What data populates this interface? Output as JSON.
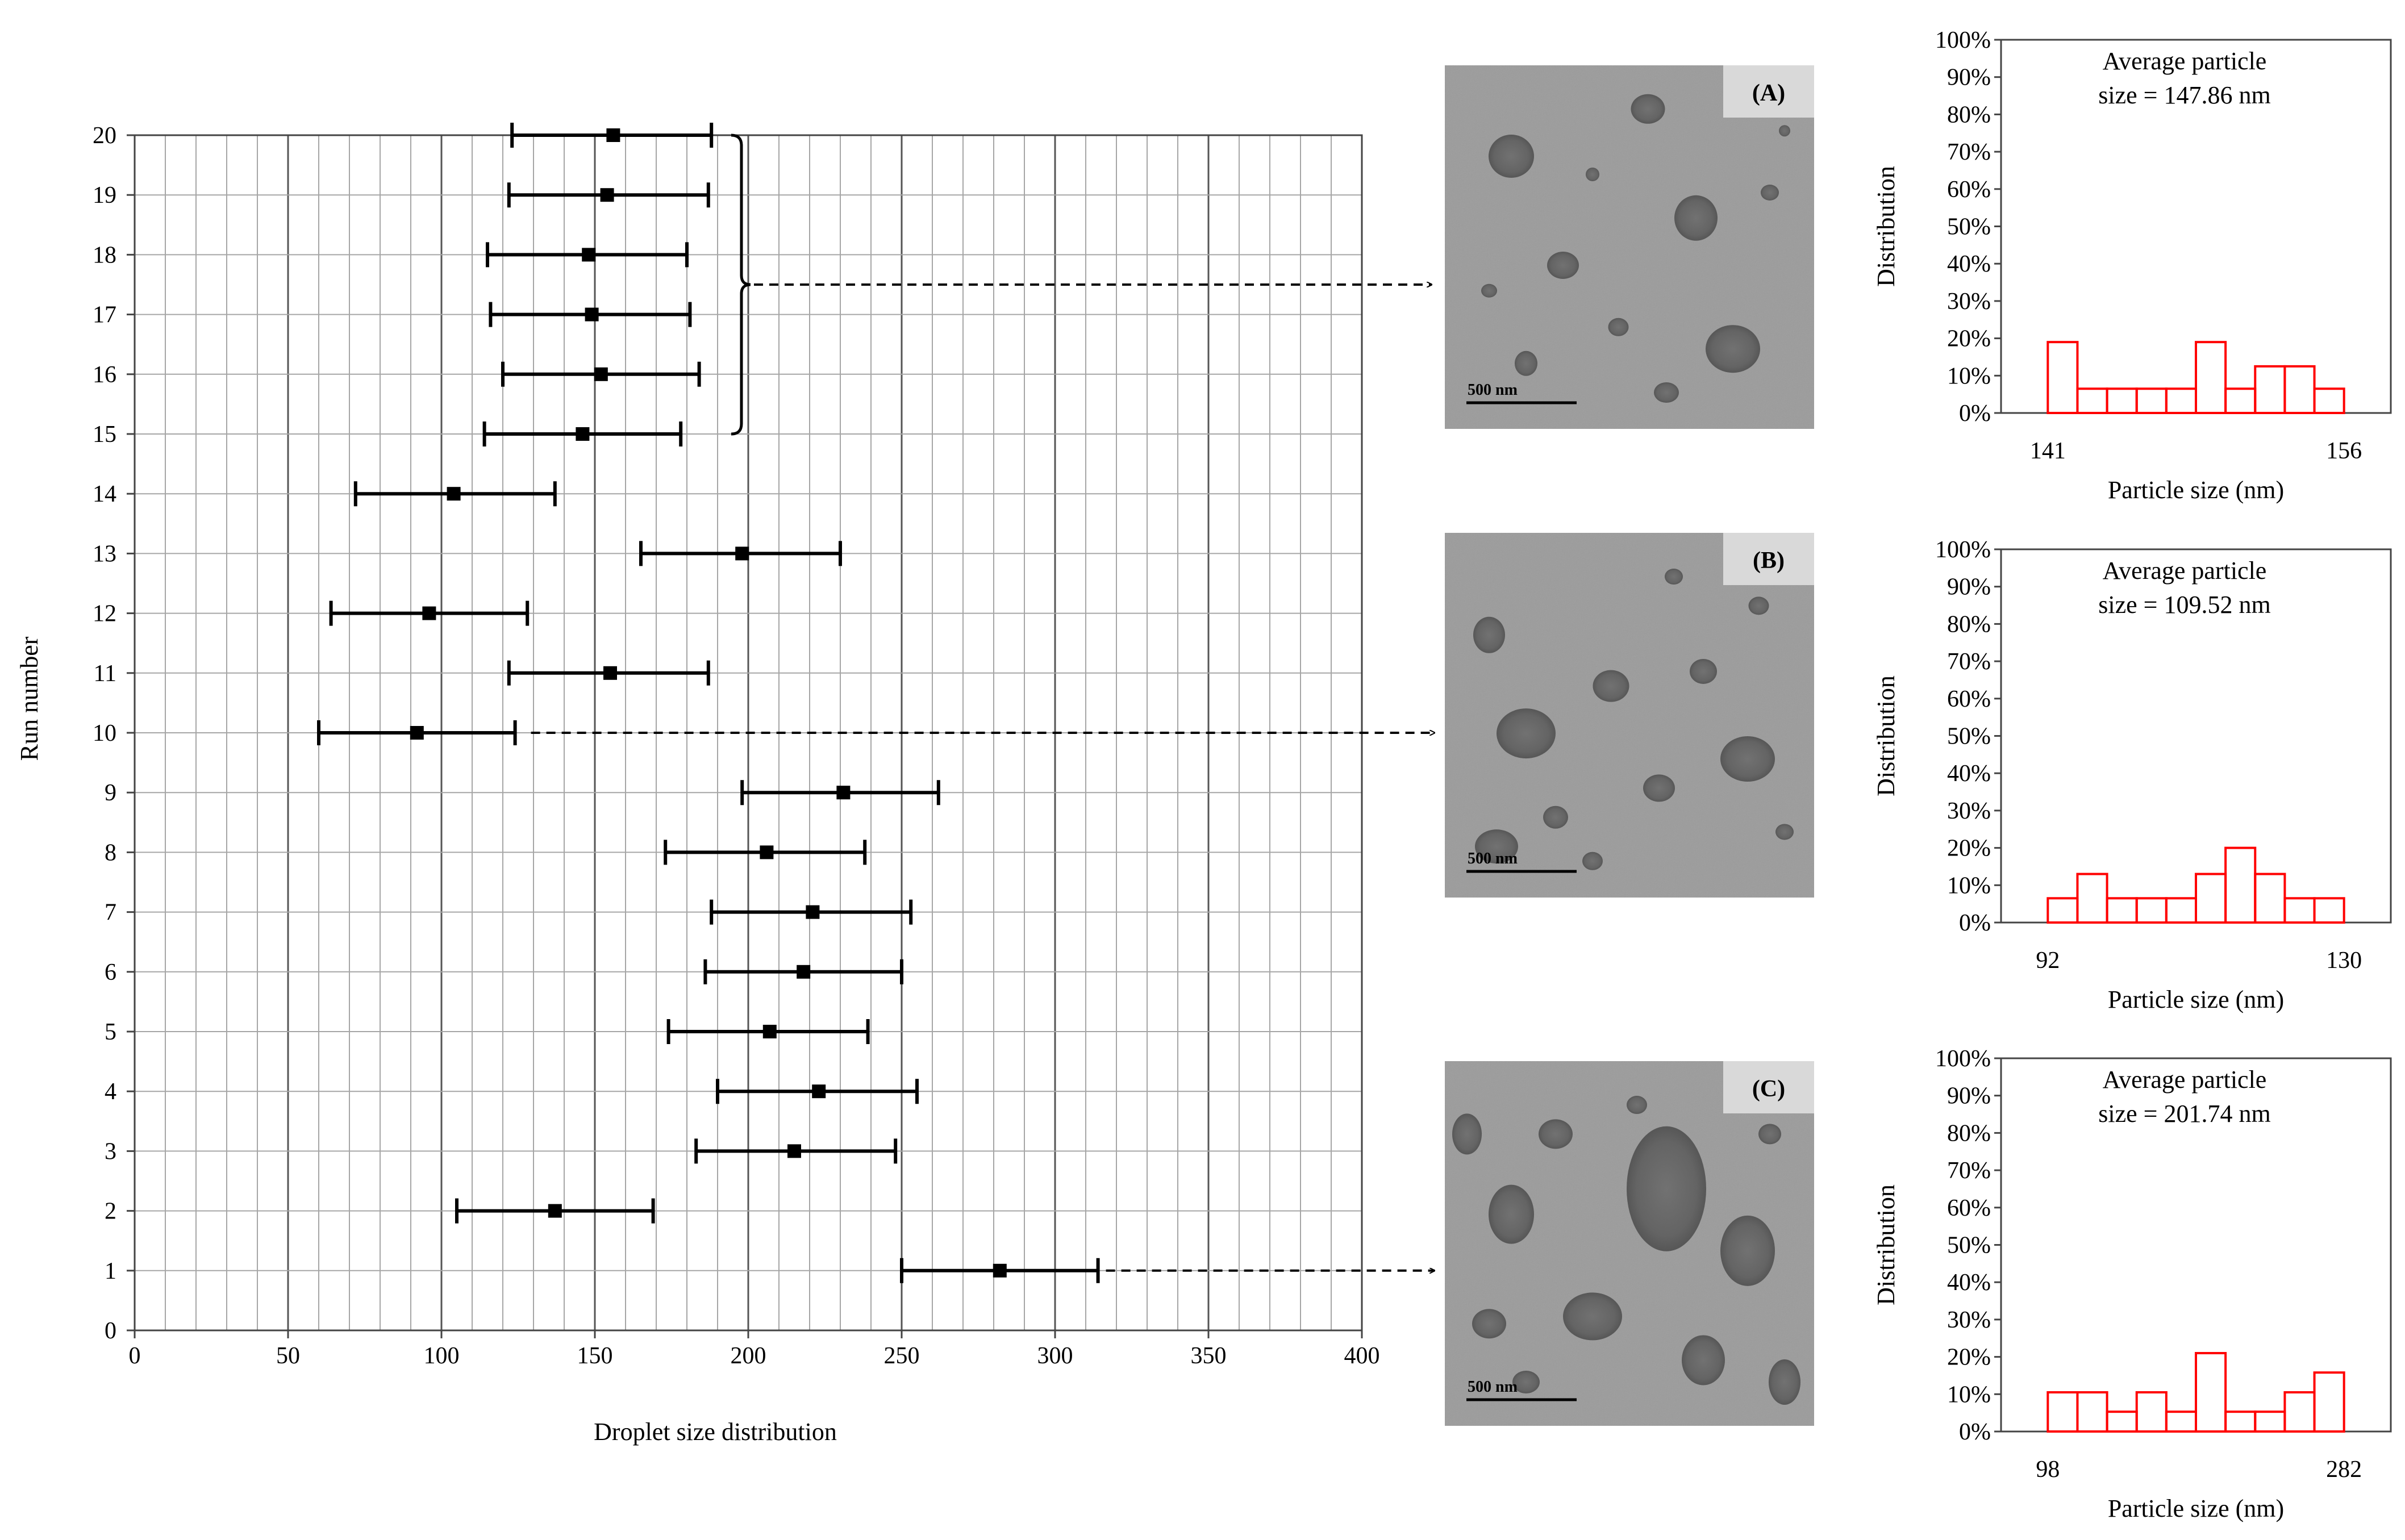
{
  "chart_data": [
    {
      "type": "scatter",
      "xlabel": "Droplet size distribution",
      "ylabel": "Run number",
      "xlim": [
        0,
        400
      ],
      "ylim": [
        0,
        20
      ],
      "xticks": [
        "0",
        "50",
        "100",
        "150",
        "200",
        "250",
        "300",
        "350",
        "400"
      ],
      "yticks": [
        "0",
        "1",
        "2",
        "3",
        "4",
        "5",
        "6",
        "7",
        "8",
        "9",
        "10",
        "11",
        "12",
        "13",
        "14",
        "15",
        "16",
        "17",
        "18",
        "19",
        "20"
      ],
      "grid": true,
      "points": [
        {
          "run": 1,
          "mean": 282,
          "low": 250,
          "high": 314
        },
        {
          "run": 2,
          "mean": 137,
          "low": 105,
          "high": 169
        },
        {
          "run": 3,
          "mean": 215,
          "low": 183,
          "high": 248
        },
        {
          "run": 4,
          "mean": 223,
          "low": 190,
          "high": 255
        },
        {
          "run": 5,
          "mean": 207,
          "low": 174,
          "high": 239
        },
        {
          "run": 6,
          "mean": 218,
          "low": 186,
          "high": 250
        },
        {
          "run": 7,
          "mean": 221,
          "low": 188,
          "high": 253
        },
        {
          "run": 8,
          "mean": 206,
          "low": 173,
          "high": 238
        },
        {
          "run": 9,
          "mean": 231,
          "low": 198,
          "high": 262
        },
        {
          "run": 10,
          "mean": 92,
          "low": 60,
          "high": 124
        },
        {
          "run": 11,
          "mean": 155,
          "low": 122,
          "high": 187
        },
        {
          "run": 12,
          "mean": 96,
          "low": 64,
          "high": 128
        },
        {
          "run": 13,
          "mean": 198,
          "low": 165,
          "high": 230
        },
        {
          "run": 14,
          "mean": 104,
          "low": 72,
          "high": 137
        },
        {
          "run": 15,
          "mean": 146,
          "low": 114,
          "high": 178
        },
        {
          "run": 16,
          "mean": 152,
          "low": 120,
          "high": 184
        },
        {
          "run": 17,
          "mean": 149,
          "low": 116,
          "high": 181
        },
        {
          "run": 18,
          "mean": 148,
          "low": 115,
          "high": 180
        },
        {
          "run": 19,
          "mean": 154,
          "low": 122,
          "high": 187
        },
        {
          "run": 20,
          "mean": 156,
          "low": 123,
          "high": 188
        }
      ],
      "callouts": [
        {
          "from_runs": [
            15,
            20
          ],
          "to_panel": "A"
        },
        {
          "from_run": 10,
          "to_panel": "B"
        },
        {
          "from_run": 1,
          "to_panel": "C"
        }
      ]
    },
    {
      "type": "bar",
      "panel": "A",
      "annotation_line1": "Average particle",
      "annotation_line2": "size = 147.86 nm",
      "xlabel": "Particle size (nm)",
      "ylabel": "Distribution",
      "x_start": "141",
      "x_end": "156",
      "yticks": [
        "0%",
        "10%",
        "20%",
        "30%",
        "40%",
        "50%",
        "60%",
        "70%",
        "80%",
        "90%",
        "100%"
      ],
      "ylim": [
        0,
        100
      ],
      "values": [
        19,
        6.5,
        6.5,
        6.5,
        6.5,
        19,
        6.5,
        12.5,
        12.5,
        6.5
      ]
    },
    {
      "type": "bar",
      "panel": "B",
      "annotation_line1": "Average particle",
      "annotation_line2": "size = 109.52 nm",
      "xlabel": "Particle size (nm)",
      "ylabel": "Distribution",
      "x_start": "92",
      "x_end": "130",
      "yticks": [
        "0%",
        "10%",
        "20%",
        "30%",
        "40%",
        "50%",
        "60%",
        "70%",
        "80%",
        "90%",
        "100%"
      ],
      "ylim": [
        0,
        100
      ],
      "values": [
        6.5,
        13,
        6.5,
        6.5,
        6.5,
        13,
        20,
        13,
        6.5,
        6.5
      ]
    },
    {
      "type": "bar",
      "panel": "C",
      "annotation_line1": "Average particle",
      "annotation_line2": "size = 201.74 nm",
      "xlabel": "Particle size (nm)",
      "ylabel": "Distribution",
      "x_start": "98",
      "x_end": "282",
      "yticks": [
        "0%",
        "10%",
        "20%",
        "30%",
        "40%",
        "50%",
        "60%",
        "70%",
        "80%",
        "90%",
        "100%"
      ],
      "ylim": [
        0,
        100
      ],
      "values": [
        10.5,
        10.5,
        5.3,
        10.5,
        5.3,
        21,
        5.3,
        5.3,
        10.5,
        15.8
      ]
    }
  ],
  "micrographs": [
    {
      "panel_label": "(A)",
      "scale_label": "500 nm"
    },
    {
      "panel_label": "(B)",
      "scale_label": "500 nm"
    },
    {
      "panel_label": "(C)",
      "scale_label": "500 nm"
    }
  ],
  "colors": {
    "histogram_line": "#ff0000",
    "marker": "#000000",
    "grid": "#a6a6a6",
    "micrograph_bg": "#9b9b9b",
    "label_box": "#d9d9d9"
  }
}
